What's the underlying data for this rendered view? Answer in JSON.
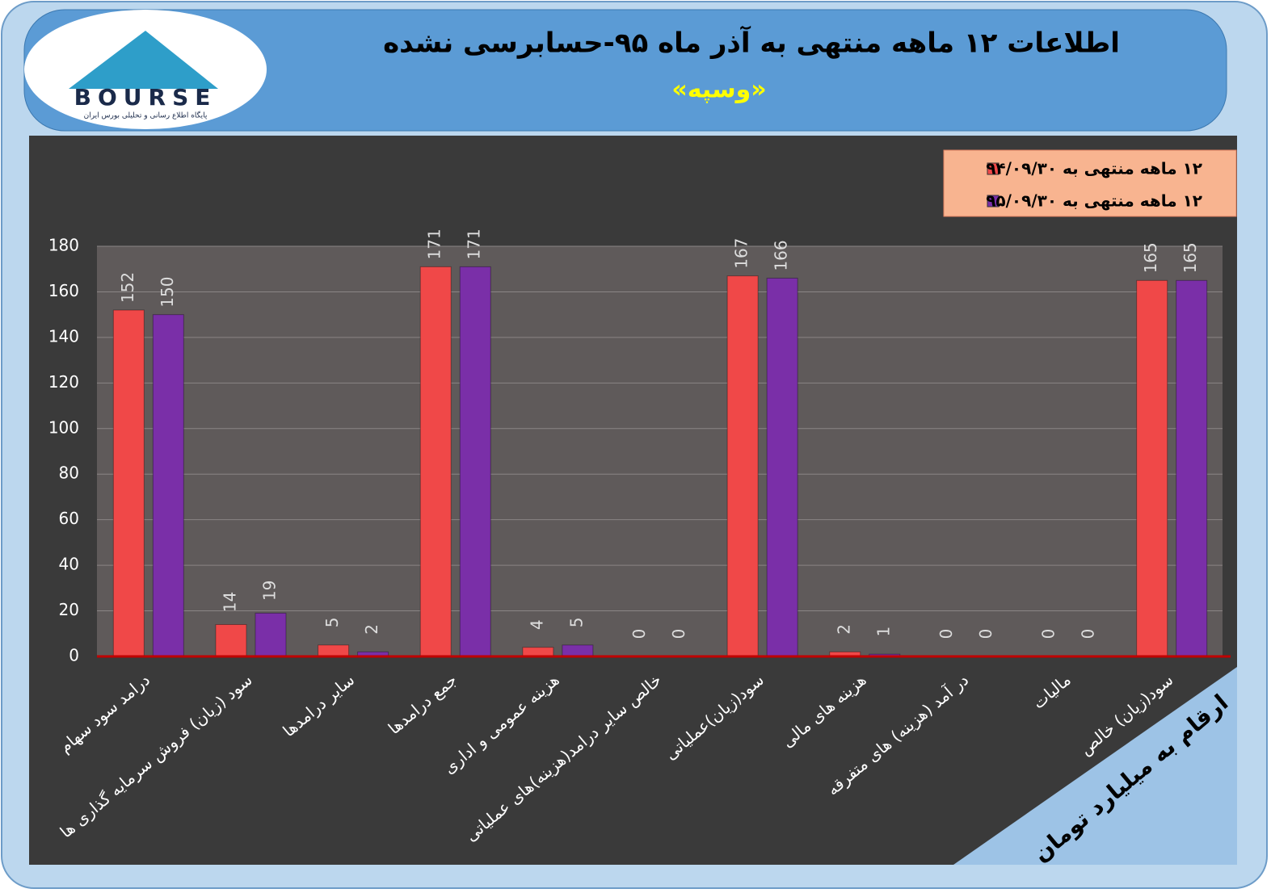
{
  "logo": {
    "name": "BOURSE",
    "tagline": "پایگاه اطلاع رسانی و تحلیلی بورس ایران"
  },
  "chart_data": {
    "type": "bar",
    "title": "اطلاعات ۱۲ ماهه منتهی به آذر ماه ۹۵-حسابرسی نشده",
    "subtitle": "«وسپه»",
    "note": "ارقام به میلیارد تومان",
    "categories": [
      "درامد سود سهام",
      "سود (زیان) فروش سرمایه گذاری ها",
      "سایر درامدها",
      "جمع درامدها",
      "هزینه عمومی و اداری",
      "خالص سایر درامد(هزینه)های عملیاتی",
      "سود(زیان)عملیاتی",
      "هزینه های مالی",
      "در آمد (هزینه) های متفرقه",
      "مالیات",
      "سود(زیان) خالص"
    ],
    "series": [
      {
        "name": "۱۲ ماهه منتهی به ۹۴/۰۹/۳۰",
        "color": "#f04848",
        "values": [
          152,
          14,
          5,
          171,
          4,
          0,
          167,
          2,
          0,
          0,
          165
        ]
      },
      {
        "name": "۱۲ ماهه منتهی به ۹۵/۰۹/۳۰",
        "color": "#7a2fa8",
        "values": [
          150,
          19,
          2,
          171,
          5,
          0,
          166,
          1,
          0,
          0,
          165
        ]
      }
    ],
    "ylim": [
      0,
      180
    ],
    "yticks": [
      0,
      20,
      40,
      60,
      80,
      100,
      120,
      140,
      160,
      180
    ],
    "grid": true,
    "legend": "top-right"
  }
}
